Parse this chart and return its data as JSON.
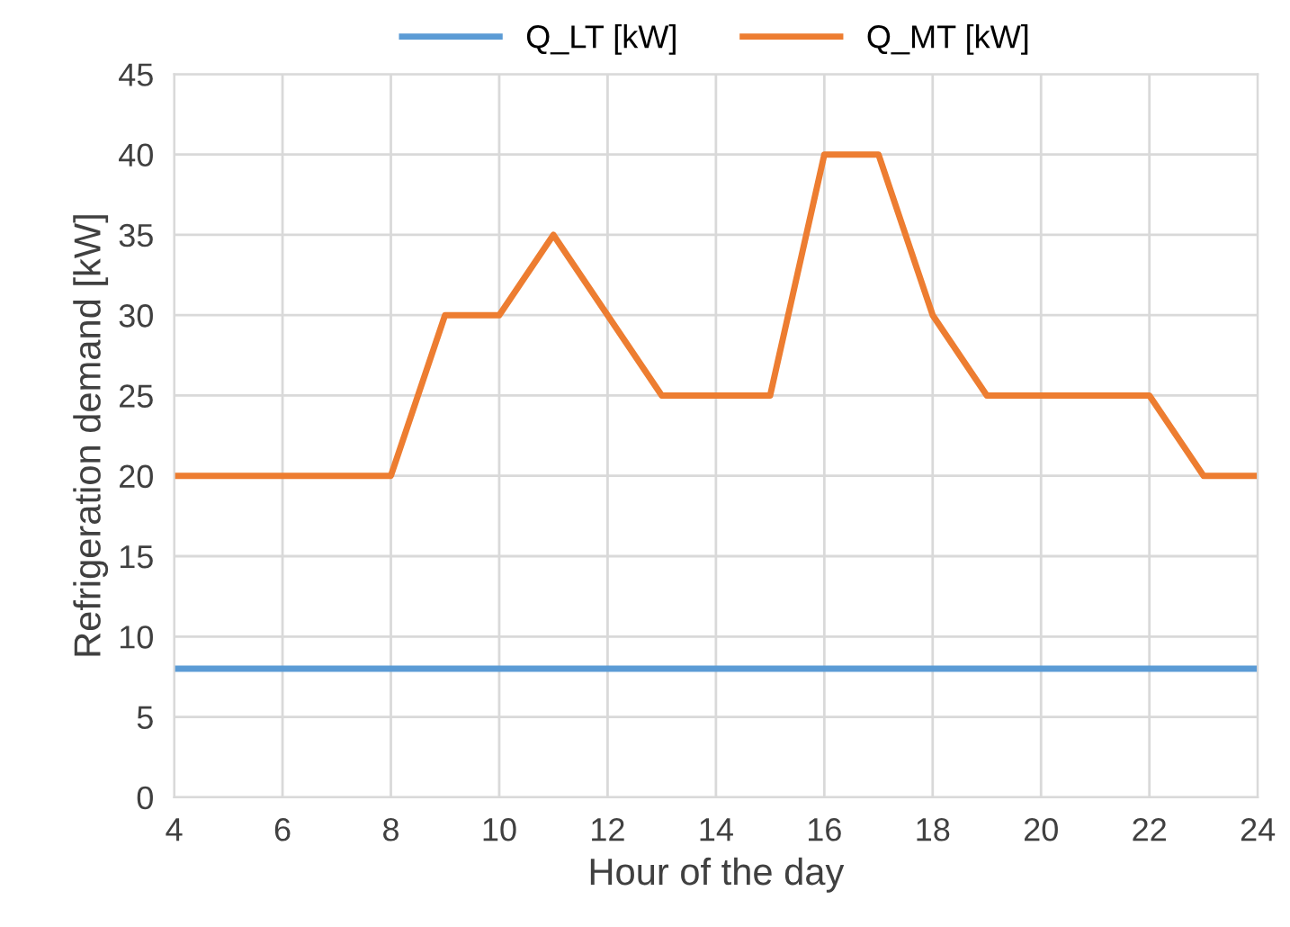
{
  "chart_data": {
    "type": "line",
    "xlabel": "Hour of the day",
    "ylabel": "Refrigeration demand [kW]",
    "x": [
      4,
      5,
      6,
      7,
      8,
      9,
      10,
      11,
      12,
      13,
      14,
      15,
      16,
      17,
      18,
      19,
      20,
      21,
      22,
      23,
      24
    ],
    "series": [
      {
        "name": "Q_LT [kW]",
        "color": "#5b9bd5",
        "values": [
          8,
          8,
          8,
          8,
          8,
          8,
          8,
          8,
          8,
          8,
          8,
          8,
          8,
          8,
          8,
          8,
          8,
          8,
          8,
          8,
          8
        ]
      },
      {
        "name": "Q_MT [kW]",
        "color": "#ed7d31",
        "values": [
          20,
          20,
          20,
          20,
          20,
          30,
          30,
          35,
          30,
          25,
          25,
          25,
          40,
          40,
          30,
          25,
          25,
          25,
          25,
          20,
          20
        ]
      }
    ],
    "xlim": [
      4,
      24
    ],
    "xticks": [
      4,
      6,
      8,
      10,
      12,
      14,
      16,
      18,
      20,
      22,
      24
    ],
    "ylim": [
      0,
      45
    ],
    "yticks": [
      0,
      5,
      10,
      15,
      20,
      25,
      30,
      35,
      40,
      45
    ],
    "grid": true,
    "legend": "top",
    "marker": "none",
    "line_style": "solid"
  }
}
